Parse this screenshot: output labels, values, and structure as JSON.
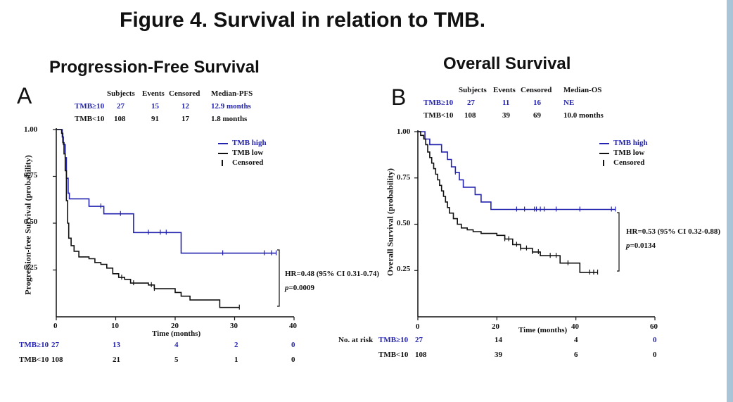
{
  "figure_title": "Figure 4. Survival in relation to TMB.",
  "colors": {
    "high": "#2323b0",
    "low": "#111111",
    "frame": "#a9c4d6"
  },
  "chart_data": [
    {
      "type": "line",
      "panel_letter": "A",
      "title": "Progression-Free Survival",
      "xlabel": "Time (months)",
      "ylabel": "Progression-free Survival (probability)",
      "xlim": [
        0,
        40
      ],
      "ylim": [
        0,
        1.0
      ],
      "x_ticks": [
        "0",
        "10",
        "20",
        "30",
        "40"
      ],
      "y_ticks": [
        "1.00",
        "0.75",
        "0.50",
        "0.25"
      ],
      "summary_headers": [
        "Subjects",
        "Events",
        "Censored",
        "Median-PFS"
      ],
      "summary_rows": [
        {
          "group": "TMB≥10",
          "subjects": "27",
          "events": "15",
          "censored": "12",
          "median": "12.9 months"
        },
        {
          "group": "TMB<10",
          "subjects": "108",
          "events": "91",
          "censored": "17",
          "median": "1.8 months"
        }
      ],
      "legend": [
        "TMB high",
        "TMB low",
        "Censored"
      ],
      "hr_text": "HR=0.48 (95% CI 0.31-0.74)",
      "p_label": "p",
      "p_value": "=0.0009",
      "risk_label": "",
      "risk_table": [
        {
          "group": "TMB≥10",
          "counts": [
            "27",
            "13",
            "4",
            "2",
            "0"
          ]
        },
        {
          "group": "TMB<10",
          "counts": [
            "108",
            "21",
            "5",
            "1",
            "0"
          ]
        }
      ],
      "series": [
        {
          "name": "TMB high",
          "steps": [
            [
              0,
              1.0
            ],
            [
              1.0,
              0.96
            ],
            [
              1.2,
              0.92
            ],
            [
              1.5,
              0.85
            ],
            [
              1.7,
              0.74
            ],
            [
              2.0,
              0.66
            ],
            [
              2.2,
              0.63
            ],
            [
              5.5,
              0.59
            ],
            [
              8.0,
              0.55
            ],
            [
              13.0,
              0.45
            ],
            [
              21.0,
              0.34
            ],
            [
              37.0,
              0.34
            ]
          ],
          "censor_x": [
            7.5,
            10.8,
            15.5,
            17.5,
            18.5,
            28.0,
            35.0,
            36.2,
            37.0
          ]
        },
        {
          "name": "TMB low",
          "steps": [
            [
              0,
              1.0
            ],
            [
              0.9,
              0.98
            ],
            [
              1.1,
              0.93
            ],
            [
              1.3,
              0.87
            ],
            [
              1.5,
              0.78
            ],
            [
              1.7,
              0.62
            ],
            [
              1.9,
              0.5
            ],
            [
              2.1,
              0.42
            ],
            [
              2.5,
              0.38
            ],
            [
              3.0,
              0.35
            ],
            [
              3.8,
              0.32
            ],
            [
              5.5,
              0.31
            ],
            [
              6.5,
              0.29
            ],
            [
              7.5,
              0.28
            ],
            [
              8.5,
              0.26
            ],
            [
              9.5,
              0.23
            ],
            [
              10.5,
              0.21
            ],
            [
              11.5,
              0.2
            ],
            [
              12.5,
              0.18
            ],
            [
              15.5,
              0.17
            ],
            [
              16.5,
              0.15
            ],
            [
              20.0,
              0.13
            ],
            [
              21.0,
              0.11
            ],
            [
              22.5,
              0.09
            ],
            [
              27.5,
              0.05
            ],
            [
              30.8,
              0.05
            ]
          ],
          "censor_x": [
            11.0,
            13.0,
            16.0,
            16.5,
            30.8
          ]
        }
      ]
    },
    {
      "type": "line",
      "panel_letter": "B",
      "title": "Overall Survival",
      "xlabel": "Time (months)",
      "ylabel": "Overall Survival (probability)",
      "xlim": [
        0,
        60
      ],
      "ylim": [
        0,
        1.0
      ],
      "x_ticks": [
        "0",
        "20",
        "40",
        "60"
      ],
      "y_ticks": [
        "1.00",
        "0.75",
        "0.50",
        "0.25"
      ],
      "summary_headers": [
        "Subjects",
        "Events",
        "Censored",
        "Median-OS"
      ],
      "summary_rows": [
        {
          "group": "TMB≥10",
          "subjects": "27",
          "events": "11",
          "censored": "16",
          "median": "NE"
        },
        {
          "group": "TMB<10",
          "subjects": "108",
          "events": "39",
          "censored": "69",
          "median": "10.0 months"
        }
      ],
      "legend": [
        "TMB high",
        "TMB low",
        "Censored"
      ],
      "hr_text": "HR=0.53  (95% CI 0.32-0.88)",
      "p_label": "p",
      "p_value": "=0.0134",
      "risk_label": "No. at risk",
      "risk_table": [
        {
          "group": "TMB≥10",
          "counts": [
            "27",
            "14",
            "4",
            "0"
          ]
        },
        {
          "group": "TMB<10",
          "counts": [
            "108",
            "39",
            "6",
            "0"
          ]
        }
      ],
      "series": [
        {
          "name": "TMB high",
          "steps": [
            [
              0,
              1.0
            ],
            [
              1.8,
              0.96
            ],
            [
              3.0,
              0.93
            ],
            [
              6.0,
              0.89
            ],
            [
              7.5,
              0.85
            ],
            [
              8.5,
              0.81
            ],
            [
              9.5,
              0.78
            ],
            [
              10.5,
              0.74
            ],
            [
              11.5,
              0.7
            ],
            [
              14.5,
              0.66
            ],
            [
              16.0,
              0.62
            ],
            [
              18.5,
              0.58
            ],
            [
              50.0,
              0.58
            ]
          ],
          "censor_x": [
            9.5,
            25.0,
            27.0,
            29.5,
            30.0,
            31.0,
            32.0,
            35.0,
            41.0,
            49.0,
            50.0
          ]
        },
        {
          "name": "TMB low",
          "steps": [
            [
              0,
              1.0
            ],
            [
              0.7,
              0.98
            ],
            [
              1.5,
              0.96
            ],
            [
              2.0,
              0.93
            ],
            [
              2.5,
              0.89
            ],
            [
              3.0,
              0.86
            ],
            [
              3.5,
              0.83
            ],
            [
              4.0,
              0.8
            ],
            [
              4.5,
              0.77
            ],
            [
              5.0,
              0.74
            ],
            [
              5.5,
              0.71
            ],
            [
              6.0,
              0.68
            ],
            [
              6.5,
              0.65
            ],
            [
              7.0,
              0.62
            ],
            [
              7.5,
              0.59
            ],
            [
              8.0,
              0.56
            ],
            [
              9.0,
              0.53
            ],
            [
              10.0,
              0.5
            ],
            [
              11.0,
              0.48
            ],
            [
              12.5,
              0.47
            ],
            [
              14.0,
              0.46
            ],
            [
              16.0,
              0.45
            ],
            [
              20.0,
              0.44
            ],
            [
              22.0,
              0.42
            ],
            [
              24.0,
              0.39
            ],
            [
              26.0,
              0.37
            ],
            [
              29.0,
              0.35
            ],
            [
              31.0,
              0.33
            ],
            [
              36.0,
              0.29
            ],
            [
              41.0,
              0.24
            ],
            [
              45.5,
              0.24
            ]
          ],
          "censor_x": [
            22.0,
            23.0,
            25.0,
            26.0,
            27.5,
            29.0,
            30.5,
            33.5,
            35.0,
            38.0,
            43.5,
            44.5,
            45.5
          ]
        }
      ]
    }
  ]
}
